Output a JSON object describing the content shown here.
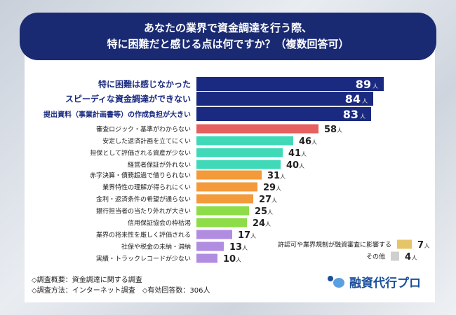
{
  "title_lines": [
    "あなたの業界で資金調達を行う際、",
    "特に困難だと感じる点は何ですか？（複数回答可）"
  ],
  "chart_data": {
    "type": "bar",
    "orientation": "horizontal",
    "unit": "人",
    "categories": [
      "特に困難は感じなかった",
      "スピーディな資金調達ができない",
      "提出資料（事業計画書等）の作成負担が大きい",
      "審査ロジック・基準がわからない",
      "安定した返済計画を立てにくい",
      "担保として評価される資産が少ない",
      "経営者保証が外れない",
      "赤字決算・債務超過で借りられない",
      "業界特性の理解が得られにくい",
      "金利・返済条件の希望が通らない",
      "銀行担当者の当たり外れが大きい",
      "信用保証協会の枠枯渇",
      "業界の将来性を厳しく評価される",
      "社保や税金の未納・滞納",
      "実績・トラックレコードが少ない",
      "許認可や業界規制が融資審査に影響する",
      "その他"
    ],
    "values": [
      89,
      84,
      83,
      58,
      46,
      41,
      40,
      31,
      29,
      27,
      25,
      24,
      17,
      13,
      10,
      7,
      4
    ],
    "colors": [
      "#1a2a80",
      "#1a2a80",
      "#1a2a80",
      "#e5605f",
      "#3fd9b8",
      "#3fd9b8",
      "#3fd9b8",
      "#f39a3a",
      "#f39a3a",
      "#f39a3a",
      "#8ddc48",
      "#8ddc48",
      "#b08de0",
      "#b08de0",
      "#b08de0",
      "#e5c46a",
      "#cfcfcf"
    ]
  },
  "footer": {
    "line1": "◇調査概要：資金調達に関する調査",
    "line2": "◇調査方法：インターネット調査　◇有効回答数：306人"
  },
  "logo": "融資代行プロ"
}
